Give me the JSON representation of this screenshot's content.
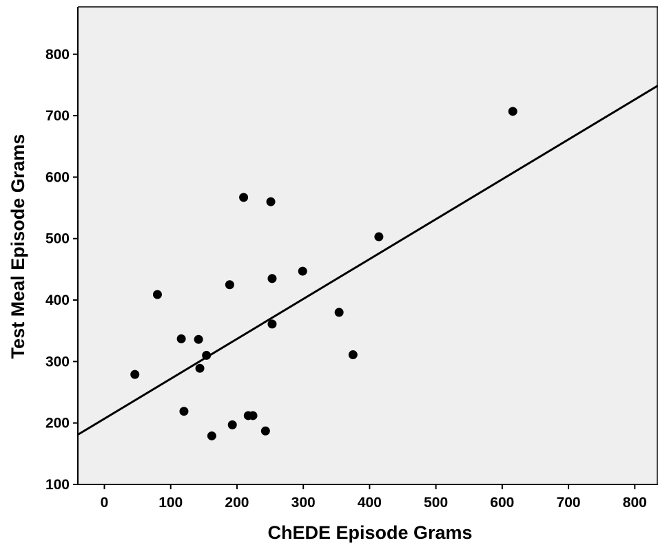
{
  "chart_data": {
    "type": "scatter",
    "xlabel": "ChEDE Episode Grams",
    "ylabel": "Test Meal Episode Grams",
    "xlim": [
      -40,
      835
    ],
    "ylim": [
      100,
      877
    ],
    "xticks": [
      0,
      100,
      200,
      300,
      400,
      500,
      600,
      700,
      800
    ],
    "yticks": [
      100,
      200,
      300,
      400,
      500,
      600,
      700,
      800
    ],
    "grid": false,
    "background": "#efefef",
    "marker_color": "#000000",
    "points": [
      {
        "x": 46,
        "y": 279
      },
      {
        "x": 80,
        "y": 409
      },
      {
        "x": 116,
        "y": 337
      },
      {
        "x": 120,
        "y": 219
      },
      {
        "x": 142,
        "y": 336
      },
      {
        "x": 144,
        "y": 289
      },
      {
        "x": 154,
        "y": 310
      },
      {
        "x": 162,
        "y": 179
      },
      {
        "x": 189,
        "y": 425
      },
      {
        "x": 193,
        "y": 197
      },
      {
        "x": 210,
        "y": 567
      },
      {
        "x": 217,
        "y": 212
      },
      {
        "x": 224,
        "y": 212
      },
      {
        "x": 243,
        "y": 187
      },
      {
        "x": 251,
        "y": 560
      },
      {
        "x": 253,
        "y": 435
      },
      {
        "x": 253,
        "y": 361
      },
      {
        "x": 299,
        "y": 447
      },
      {
        "x": 354,
        "y": 380
      },
      {
        "x": 375,
        "y": 311
      },
      {
        "x": 414,
        "y": 503
      },
      {
        "x": 616,
        "y": 707
      }
    ],
    "fit_line": {
      "x": [
        -40,
        835
      ],
      "y": [
        181,
        749
      ]
    }
  }
}
